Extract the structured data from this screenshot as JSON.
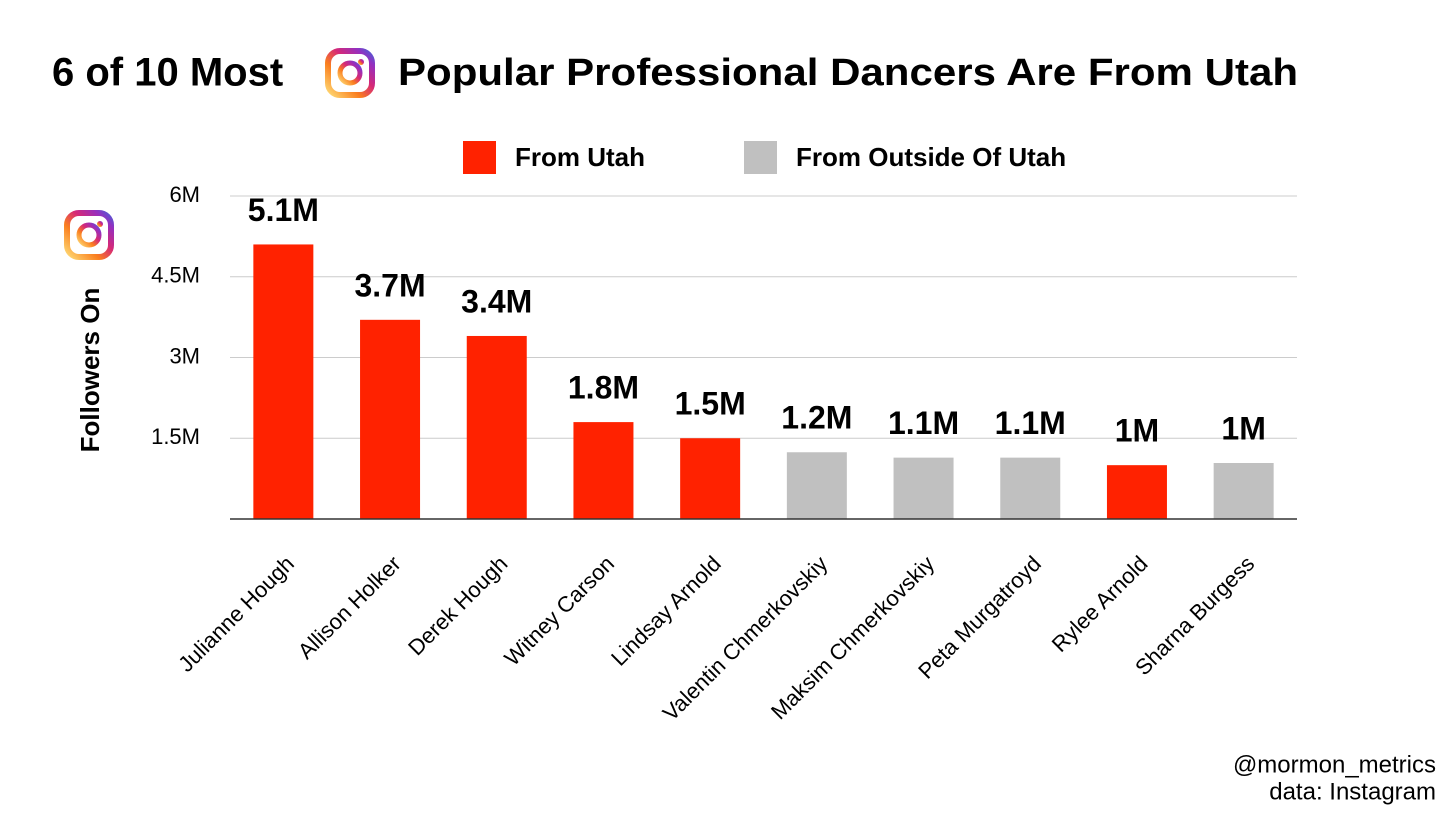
{
  "chart_data": {
    "type": "bar",
    "title_parts": [
      "6 of 10 Most",
      "Popular Professional Dancers Are From Utah"
    ],
    "y_axis_label": "Followers On",
    "categories": [
      "Julianne Hough",
      "Allison Holker",
      "Derek Hough",
      "Witney Carson",
      "Lindsay Arnold",
      "Valentin Chmerkovskiy",
      "Maksim Chmerkovskiy",
      "Peta Murgatroyd",
      "Rylee Arnold",
      "Sharna Burgess"
    ],
    "values": [
      5.1,
      3.7,
      3.4,
      1.8,
      1.5,
      1.24,
      1.14,
      1.14,
      1.0,
      1.04
    ],
    "value_labels": [
      "5.1M",
      "3.7M",
      "3.4M",
      "1.8M",
      "1.5M",
      "1.2M",
      "1.1M",
      "1.1M",
      "1M",
      "1M"
    ],
    "colors": [
      "#ff2200",
      "#ff2200",
      "#ff2200",
      "#ff2200",
      "#ff2200",
      "#c0c0c0",
      "#c0c0c0",
      "#c0c0c0",
      "#ff2200",
      "#c0c0c0"
    ],
    "legend": [
      {
        "name": "From Utah",
        "color": "#ff2200"
      },
      {
        "name": "From Outside Of Utah",
        "color": "#c0c0c0"
      }
    ],
    "ylim": [
      0,
      6
    ],
    "yticks": [
      {
        "value": 1.5,
        "label": "1.5M"
      },
      {
        "value": 3,
        "label": "3M"
      },
      {
        "value": 4.5,
        "label": "4.5M"
      },
      {
        "value": 6,
        "label": "6M"
      }
    ],
    "grid": true,
    "credit": "@mormon_metrics",
    "source": "data: Instagram"
  }
}
